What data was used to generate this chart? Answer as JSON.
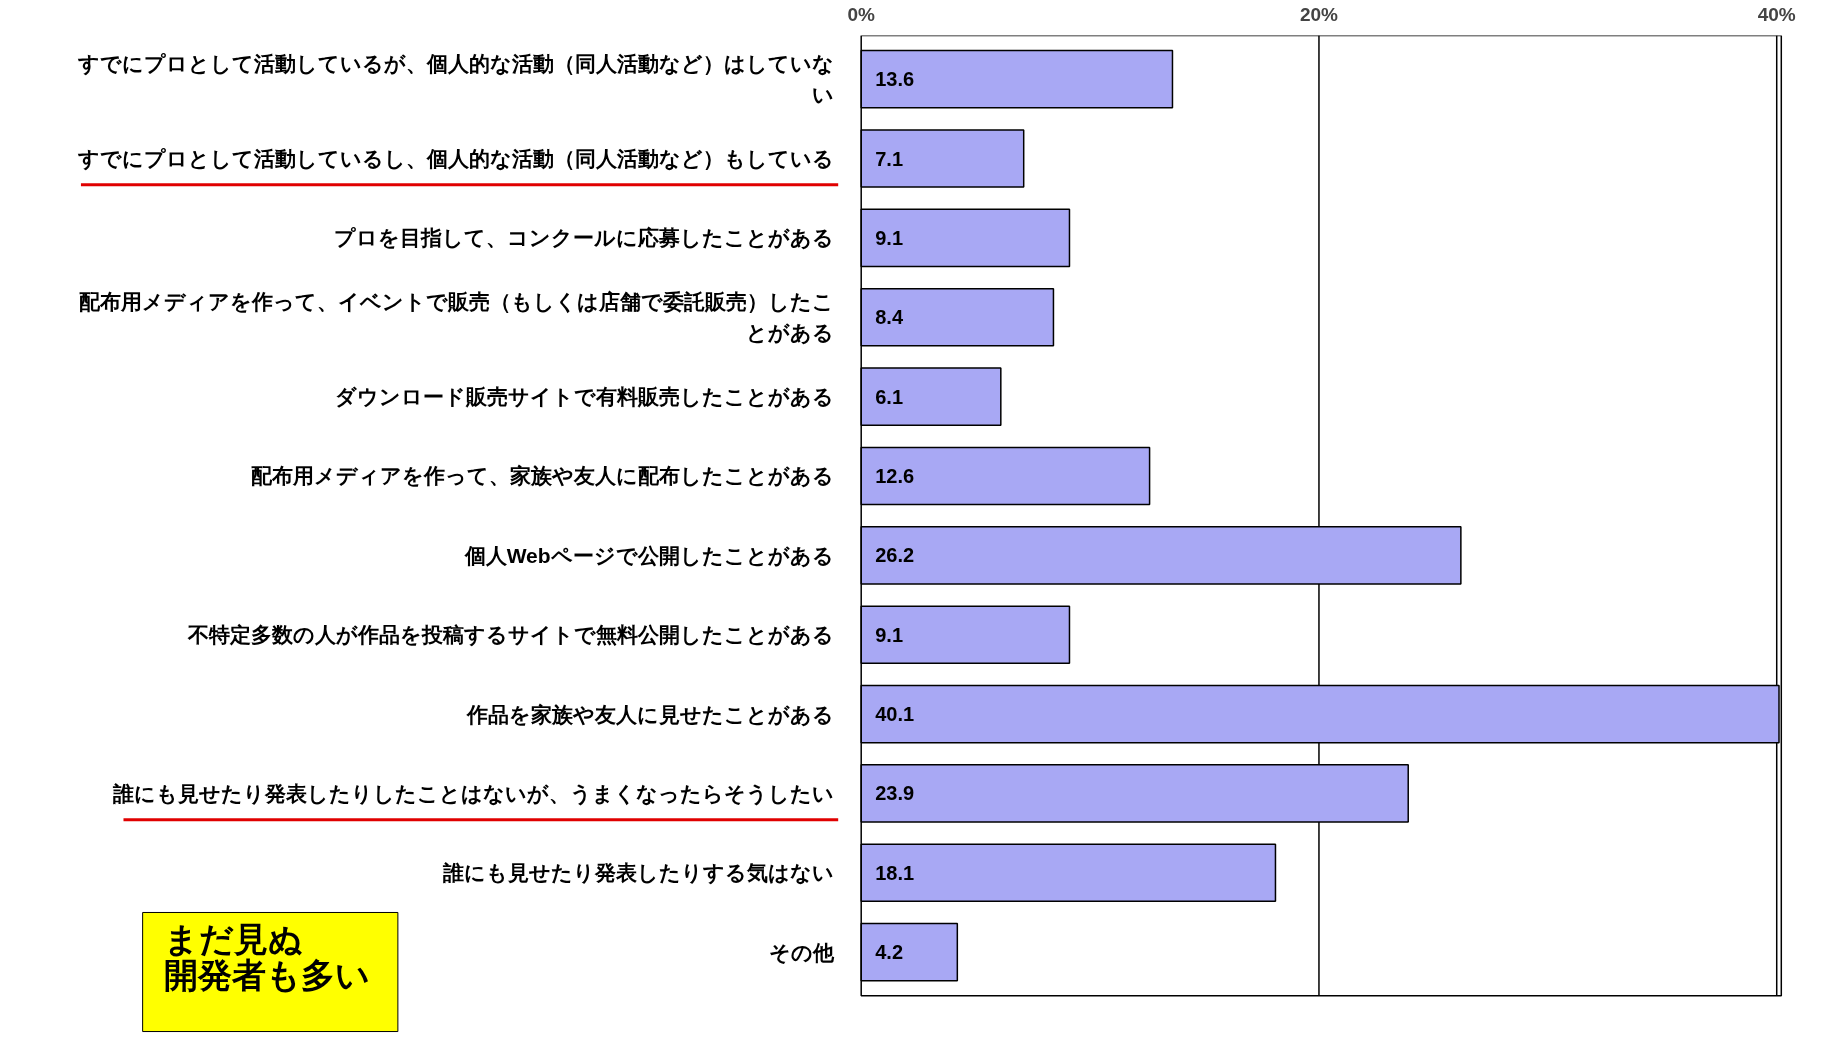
{
  "chart_data": {
    "type": "bar",
    "orientation": "horizontal",
    "categories": [
      "すでにプロとして活動しているが、個人的な活動（同人活動など）はしていない",
      "すでにプロとして活動しているし、個人的な活動（同人活動など）もしている",
      "プロを目指して、コンクールに応募したことがある",
      "配布用メディアを作って、イベントで販売（もしくは店舗で委託販売）したことがある",
      "ダウンロード販売サイトで有料販売したことがある",
      "配布用メディアを作って、家族や友人に配布したことがある",
      "個人Webページで公開したことがある",
      "不特定多数の人が作品を投稿するサイトで無料公開したことがある",
      "作品を家族や友人に見せたことがある",
      "誰にも見せたり発表したりしたことはないが、うまくなったらそうしたい",
      "誰にも見せたり発表したりする気はない",
      "その他"
    ],
    "values": [
      13.6,
      7.1,
      9.1,
      8.4,
      6.1,
      12.6,
      26.2,
      9.1,
      40.1,
      23.9,
      18.1,
      4.2
    ],
    "color": "#a8a8f4",
    "xlim": [
      0,
      40.2
    ],
    "xticks": [
      {
        "value": 0,
        "label": "0%"
      },
      {
        "value": 20,
        "label": "20%"
      },
      {
        "value": 40,
        "label": "40%"
      }
    ],
    "grid": "x",
    "data_labels": true,
    "annotations": [
      "まだ見ぬ",
      "開発者も多い"
    ]
  }
}
